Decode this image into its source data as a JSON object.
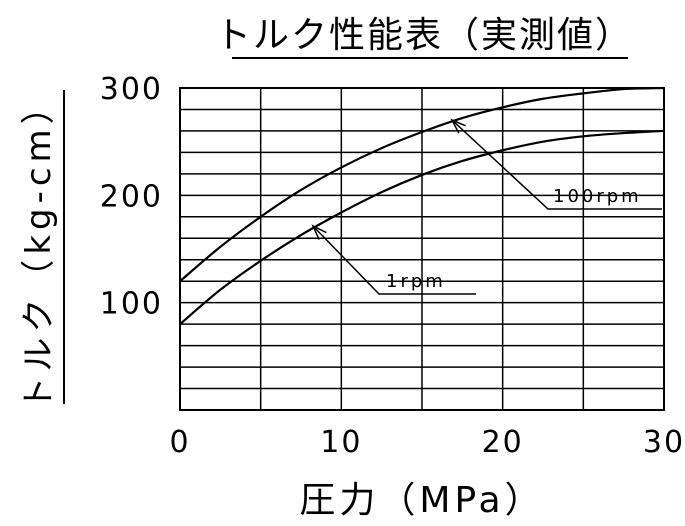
{
  "chart_data": {
    "type": "line",
    "title": "トルク性能表（実測値）",
    "xlabel": "圧力（MPa）",
    "ylabel": "トルク（kg-cm）",
    "xlim": [
      0,
      30
    ],
    "ylim": [
      0,
      300
    ],
    "x_ticks": [
      "0",
      "10",
      "20",
      "30"
    ],
    "y_ticks": [
      "100",
      "200",
      "300"
    ],
    "grid": true,
    "series": [
      {
        "name": "100rpm",
        "x": [
          0,
          2.5,
          5,
          7.5,
          10,
          12.5,
          15,
          17.5,
          20,
          22.5,
          25,
          27.5,
          30
        ],
        "y": [
          120,
          152,
          180,
          205,
          226,
          244,
          259,
          272,
          282,
          290,
          295,
          299,
          300
        ]
      },
      {
        "name": "1rpm",
        "x": [
          0,
          2.5,
          5,
          7.5,
          10,
          12.5,
          15,
          17.5,
          20,
          22.5,
          25,
          27.5,
          30
        ],
        "y": [
          80,
          112,
          139,
          163,
          184,
          203,
          219,
          232,
          242,
          250,
          255,
          258,
          260
        ]
      }
    ]
  }
}
